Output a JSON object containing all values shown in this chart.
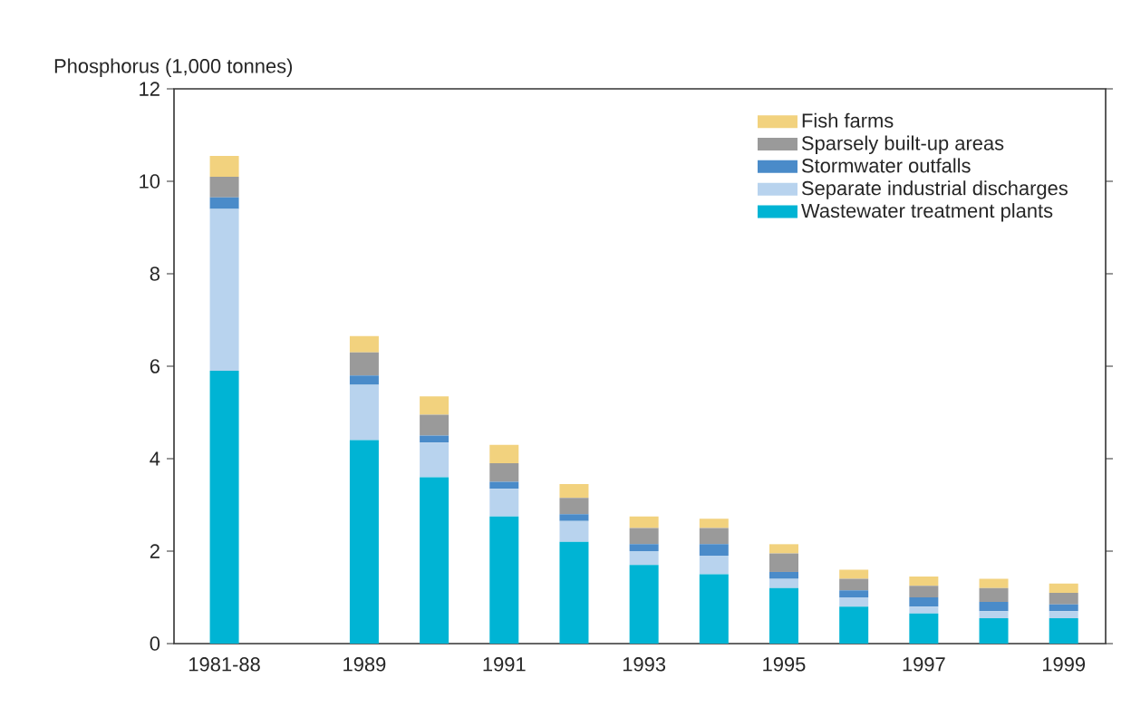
{
  "chart_data": {
    "type": "bar",
    "stacked": true,
    "ylabel": "Phosphorus (1,000 tonnes)",
    "categories": [
      "1981-88",
      null,
      "1989",
      null,
      "1991",
      null,
      "1993",
      null,
      "1995",
      null,
      "1997",
      null,
      "1999"
    ],
    "series": [
      {
        "name": "Wastewater treatment plants",
        "color": "#00b4d4",
        "values": [
          5.9,
          null,
          4.4,
          3.6,
          2.75,
          2.2,
          1.7,
          1.5,
          1.2,
          0.8,
          0.65,
          0.55,
          0.55
        ]
      },
      {
        "name": "Separate industrial discharges",
        "color": "#b8d3ee",
        "values": [
          3.5,
          null,
          1.2,
          0.75,
          0.6,
          0.45,
          0.3,
          0.4,
          0.2,
          0.2,
          0.15,
          0.15,
          0.15
        ]
      },
      {
        "name": "Stormwater outfalls",
        "color": "#4a8bc9",
        "values": [
          0.25,
          null,
          0.2,
          0.15,
          0.15,
          0.15,
          0.15,
          0.25,
          0.15,
          0.15,
          0.2,
          0.2,
          0.15
        ]
      },
      {
        "name": "Sparsely built-up areas",
        "color": "#9a9a9a",
        "values": [
          0.45,
          null,
          0.5,
          0.45,
          0.4,
          0.35,
          0.35,
          0.35,
          0.4,
          0.25,
          0.25,
          0.3,
          0.25
        ]
      },
      {
        "name": "Fish farms",
        "color": "#f2d27e",
        "values": [
          0.45,
          null,
          0.35,
          0.4,
          0.4,
          0.3,
          0.25,
          0.2,
          0.2,
          0.2,
          0.2,
          0.2,
          0.2
        ]
      }
    ],
    "ylim": [
      0,
      12
    ],
    "yticks": [
      0,
      2,
      4,
      6,
      8,
      10,
      12
    ],
    "legend": "top right"
  }
}
